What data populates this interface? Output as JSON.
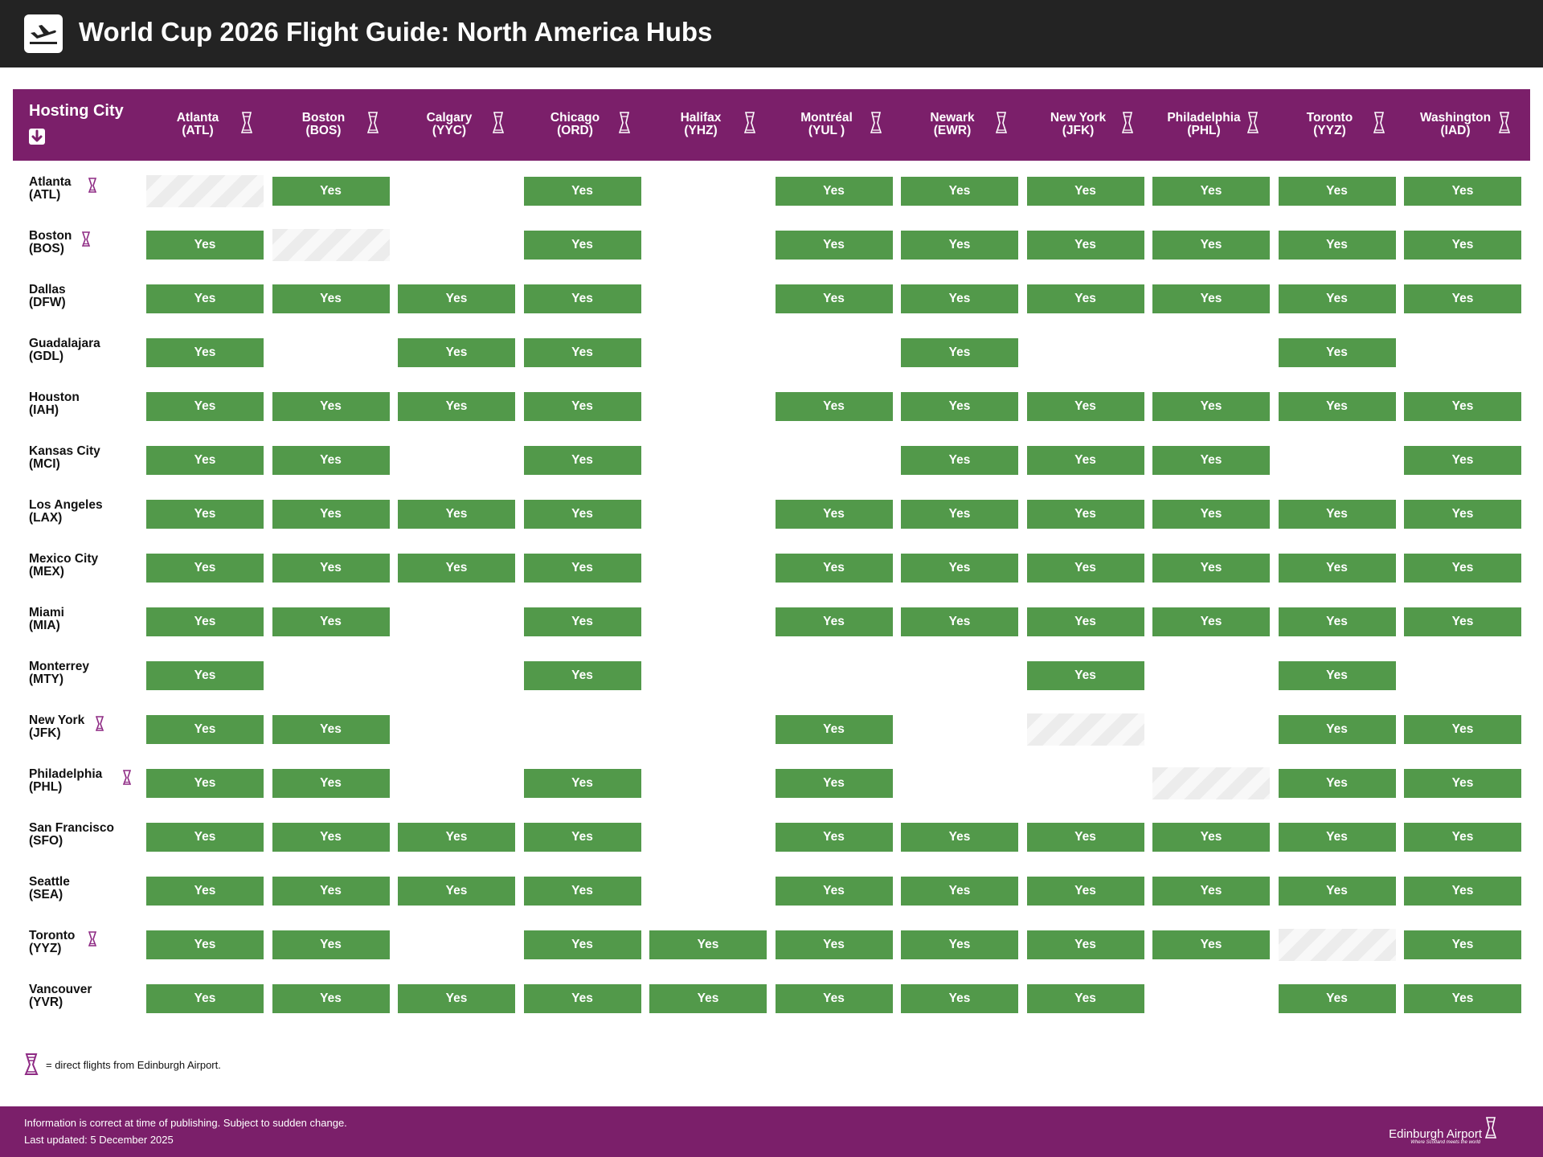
{
  "header": {
    "title": "World Cup 2026 Flight Guide: North America Hubs",
    "logo_icon": "plane-departure-icon"
  },
  "table": {
    "corner_label": "Hosting City",
    "corner_icon": "arrow-down-icon",
    "yes_label": "Yes",
    "columns": [
      {
        "city": "Atlanta",
        "code": "(ATL)",
        "edinburgh_direct": true
      },
      {
        "city": "Boston",
        "code": "(BOS)",
        "edinburgh_direct": true
      },
      {
        "city": "Calgary",
        "code": "(YYC)",
        "edinburgh_direct": true
      },
      {
        "city": "Chicago",
        "code": "(ORD)",
        "edinburgh_direct": true
      },
      {
        "city": "Halifax",
        "code": "(YHZ)",
        "edinburgh_direct": true
      },
      {
        "city": "Montréal",
        "code": "(YUL )",
        "edinburgh_direct": true
      },
      {
        "city": "Newark",
        "code": "(EWR)",
        "edinburgh_direct": true
      },
      {
        "city": "New York",
        "code": "(JFK)",
        "edinburgh_direct": true
      },
      {
        "city": "Philadelphia",
        "code": "(PHL)",
        "edinburgh_direct": true
      },
      {
        "city": "Toronto",
        "code": "(YYZ)",
        "edinburgh_direct": true
      },
      {
        "city": "Washington",
        "code": "(IAD)",
        "edinburgh_direct": true
      }
    ],
    "rows": [
      {
        "city": "Atlanta",
        "code": "(ATL)",
        "edinburgh_direct": true,
        "cells": [
          "self",
          "yes",
          "",
          "yes",
          "",
          "yes",
          "yes",
          "yes",
          "yes",
          "yes",
          "yes"
        ]
      },
      {
        "city": "Boston",
        "code": "(BOS)",
        "edinburgh_direct": true,
        "cells": [
          "yes",
          "self",
          "",
          "yes",
          "",
          "yes",
          "yes",
          "yes",
          "yes",
          "yes",
          "yes"
        ]
      },
      {
        "city": "Dallas",
        "code": "(DFW)",
        "edinburgh_direct": false,
        "cells": [
          "yes",
          "yes",
          "yes",
          "yes",
          "",
          "yes",
          "yes",
          "yes",
          "yes",
          "yes",
          "yes"
        ]
      },
      {
        "city": "Guadalajara",
        "code": "(GDL)",
        "edinburgh_direct": false,
        "cells": [
          "yes",
          "",
          "yes",
          "yes",
          "",
          "",
          "yes",
          "",
          "",
          "yes",
          ""
        ]
      },
      {
        "city": "Houston",
        "code": "(IAH)",
        "edinburgh_direct": false,
        "cells": [
          "yes",
          "yes",
          "yes",
          "yes",
          "",
          "yes",
          "yes",
          "yes",
          "yes",
          "yes",
          "yes"
        ]
      },
      {
        "city": "Kansas City",
        "code": "(MCI)",
        "edinburgh_direct": false,
        "cells": [
          "yes",
          "yes",
          "",
          "yes",
          "",
          "",
          "yes",
          "yes",
          "yes",
          "",
          "yes"
        ]
      },
      {
        "city": "Los Angeles",
        "code": "(LAX)",
        "edinburgh_direct": false,
        "cells": [
          "yes",
          "yes",
          "yes",
          "yes",
          "",
          "yes",
          "yes",
          "yes",
          "yes",
          "yes",
          "yes"
        ]
      },
      {
        "city": "Mexico City",
        "code": "(MEX)",
        "edinburgh_direct": false,
        "cells": [
          "yes",
          "yes",
          "yes",
          "yes",
          "",
          "yes",
          "yes",
          "yes",
          "yes",
          "yes",
          "yes"
        ]
      },
      {
        "city": "Miami",
        "code": "(MIA)",
        "edinburgh_direct": false,
        "cells": [
          "yes",
          "yes",
          "",
          "yes",
          "",
          "yes",
          "yes",
          "yes",
          "yes",
          "yes",
          "yes"
        ]
      },
      {
        "city": "Monterrey",
        "code": "(MTY)",
        "edinburgh_direct": false,
        "cells": [
          "yes",
          "",
          "",
          "yes",
          "",
          "",
          "",
          "yes",
          "",
          "yes",
          ""
        ]
      },
      {
        "city": "New York",
        "code": "(JFK)",
        "edinburgh_direct": true,
        "cells": [
          "yes",
          "yes",
          "",
          "",
          "",
          "yes",
          "",
          "self",
          "",
          "yes",
          "yes"
        ]
      },
      {
        "city": "Philadelphia",
        "code": "(PHL)",
        "edinburgh_direct": true,
        "cells": [
          "yes",
          "yes",
          "",
          "yes",
          "",
          "yes",
          "",
          "",
          "self",
          "yes",
          "yes"
        ]
      },
      {
        "city": "San Francisco",
        "code": "(SFO)",
        "edinburgh_direct": false,
        "cells": [
          "yes",
          "yes",
          "yes",
          "yes",
          "",
          "yes",
          "yes",
          "yes",
          "yes",
          "yes",
          "yes"
        ]
      },
      {
        "city": "Seattle",
        "code": "(SEA)",
        "edinburgh_direct": false,
        "cells": [
          "yes",
          "yes",
          "yes",
          "yes",
          "",
          "yes",
          "yes",
          "yes",
          "yes",
          "yes",
          "yes"
        ]
      },
      {
        "city": "Toronto",
        "code": "(YYZ)",
        "edinburgh_direct": true,
        "cells": [
          "yes",
          "yes",
          "",
          "yes",
          "yes",
          "yes",
          "yes",
          "yes",
          "yes",
          "self",
          "yes"
        ]
      },
      {
        "city": "Vancouver",
        "code": "(YVR)",
        "edinburgh_direct": false,
        "cells": [
          "yes",
          "yes",
          "yes",
          "yes",
          "yes",
          "yes",
          "yes",
          "yes",
          "",
          "yes",
          "yes"
        ]
      }
    ]
  },
  "legend": {
    "icon": "trophy-icon",
    "text": "= direct flights from Edinburgh Airport."
  },
  "footer": {
    "disclaimer": "Information is correct at time of publishing. Subject to sudden change.",
    "updated": "Last updated: 5 December 2025",
    "brand_name": "Edinburgh Airport",
    "brand_tagline": "Where Scotland meets the world"
  },
  "colors": {
    "header_bar": "#232323",
    "brand_purple": "#7b1f6a",
    "yes_green": "#52994a",
    "trophy_purple": "#8e2a84"
  }
}
